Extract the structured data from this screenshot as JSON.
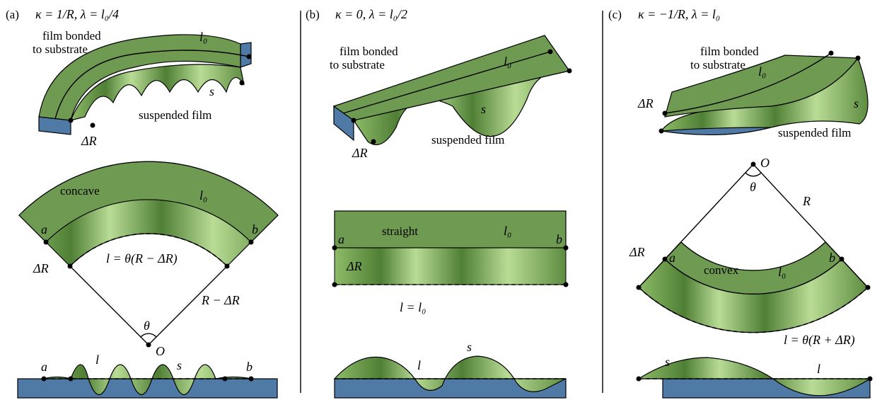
{
  "panels": [
    {
      "label": "(a)",
      "heading": "κ = 1/R, λ = l₀/4",
      "top": {
        "bonded": [
          "film bonded",
          "to substrate"
        ],
        "l0": "l₀",
        "s": "s",
        "suspended": "suspended film",
        "dR": "ΔR"
      },
      "middle": {
        "shape": "concave",
        "l0": "l₀",
        "a": "a",
        "b": "b",
        "dR": "ΔR",
        "length": "l = θ(R − ΔR)",
        "radius": "R − ΔR",
        "theta": "θ",
        "origin": "O"
      },
      "bottom": {
        "a": "a",
        "l": "l",
        "s": "s",
        "b": "b"
      }
    },
    {
      "label": "(b)",
      "heading": "κ = 0, λ = l₀/2",
      "top": {
        "bonded": [
          "film bonded",
          "to substrate"
        ],
        "l0": "l₀",
        "s": "s",
        "suspended": "suspended film",
        "dR": "ΔR"
      },
      "middle": {
        "shape": "straight",
        "l0": "l₀",
        "a": "a",
        "b": "b",
        "dR": "ΔR",
        "length": "l = l₀"
      },
      "bottom": {
        "s": "s",
        "l": "l"
      }
    },
    {
      "label": "(c)",
      "heading": "κ = −1/R, λ = l₀",
      "top": {
        "bonded": [
          "film bonded",
          "to substrate"
        ],
        "l0": "l₀",
        "s": "s",
        "suspended": "suspended film",
        "dR": "ΔR"
      },
      "middle": {
        "origin": "O",
        "theta": "θ",
        "radius": "R",
        "dR": "ΔR",
        "a": "a",
        "b": "b",
        "shape": "convex",
        "l0": "l₀",
        "length": "l = θ(R + ΔR)"
      },
      "bottom": {
        "s": "s",
        "l": "l"
      }
    }
  ]
}
